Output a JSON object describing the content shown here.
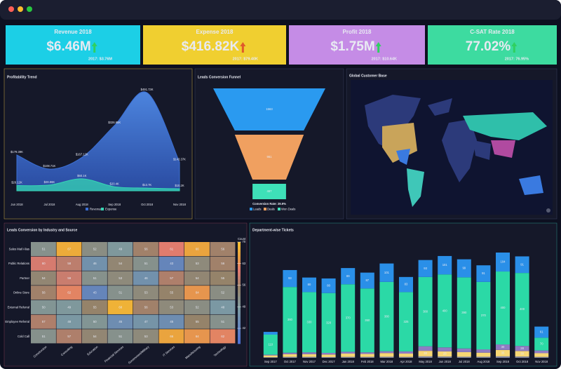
{
  "kpis": [
    {
      "title": "Revenue 2018",
      "value": "$6.46M",
      "previous": "2017: $3.76M",
      "color": "#1ccfe6"
    },
    {
      "title": "Expense 2018",
      "value": "$416.82K",
      "previous": "2017: $79.40K",
      "color": "#f0cf30"
    },
    {
      "title": "Profit 2018",
      "value": "$1.75M",
      "previous": "2017: $10.64K",
      "color": "#c58ce6"
    },
    {
      "title": "C-SAT Rate 2018",
      "value": "77.02%",
      "previous": "2017: 76.95%",
      "color": "#3ddba0"
    }
  ],
  "map": {
    "title": "Global Customer Base"
  },
  "chart_data": [
    {
      "type": "area",
      "title": "Profitability Trend",
      "categories": [
        "Jun 2018",
        "Jul 2018",
        "Aug 2018",
        "Sep 2018",
        "Oct 2018",
        "Nov 2018"
      ],
      "series": [
        {
          "name": "Revenue",
          "color": "#3b6fd4",
          "values": [
            179.39,
            108.71,
            167.12,
            326.95,
            491.73,
            143.37
          ],
          "value_labels": [
            "$179.39K",
            "$108.71K",
            "$167.12K",
            "$326.95K",
            "$491.73K",
            "$143.37K"
          ]
        },
        {
          "name": "Expense",
          "color": "#36d6b4",
          "values": [
            26.12,
            28.86,
            60.1,
            20.4,
            13.7,
            10.2
          ],
          "value_labels": [
            "$26.12K",
            "$28.86K",
            "$60.1K",
            "$20.4K",
            "$13.7K",
            "$10.2K"
          ]
        }
      ]
    },
    {
      "type": "funnel",
      "title": "Leads Conversion Funnel",
      "categories": [
        "Leads",
        "Deals",
        "Won Deals"
      ],
      "values": [
        1563,
        961,
        467
      ],
      "colors": [
        "#2a9af0",
        "#f0a060",
        "#3ee0b8"
      ],
      "annotation": "Conversion Rate: 29.9%"
    },
    {
      "type": "heatmap",
      "title": "Leads Conversion by Industry and Source",
      "rows": [
        "Sales Mail Alias",
        "Public Relations",
        "Partner",
        "Online Store",
        "External Referral",
        "Employee Referral",
        "Cold Call"
      ],
      "columns": [
        "Construction",
        "Consulting",
        "Education",
        "Financial Services",
        "Government/Military",
        "IT Services",
        "Manufacturing",
        "Technology"
      ],
      "values": [
        [
          51,
          67,
          52,
          49,
          56,
          61,
          66,
          56
        ],
        [
          60,
          58,
          46,
          54,
          51,
          43,
          53,
          56
        ],
        [
          54,
          59,
          51,
          53,
          46,
          57,
          54,
          55
        ],
        [
          56,
          62,
          43,
          51,
          53,
          55,
          64,
          52
        ],
        [
          50,
          49,
          55,
          68,
          56,
          53,
          52,
          48
        ],
        [
          57,
          48,
          50,
          45,
          47,
          45,
          55,
          51
        ],
        [
          51,
          57,
          54,
          51,
          53,
          66,
          64,
          62
        ]
      ],
      "legend_title": "Count",
      "clim": [
        37,
        70
      ],
      "cticks": [
        70,
        63,
        56,
        49,
        42
      ]
    },
    {
      "type": "stacked_bar",
      "title": "Department-wise Tickets",
      "categories": [
        "Sep 2017",
        "Oct 2017",
        "Nov 2017",
        "Dec 2017",
        "Jan 2018",
        "Feb 2018",
        "Mar 2018",
        "Apr 2018",
        "May 2018",
        "Jun 2018",
        "Jul 2018",
        "Aug 2018",
        "Sep 2018",
        "Oct 2018",
        "Nov 2018"
      ],
      "series": [
        {
          "color": "#8a8fa8",
          "values": [
            3,
            5,
            5,
            4,
            5,
            5,
            6,
            5,
            8,
            7,
            6,
            6,
            8,
            7,
            5
          ]
        },
        {
          "color": "#f7d774",
          "values": [
            10,
            15,
            15,
            14,
            18,
            16,
            20,
            18,
            30,
            28,
            25,
            22,
            35,
            30,
            20
          ]
        },
        {
          "color": "#8e7cc3",
          "values": [
            4,
            8,
            10,
            9,
            10,
            9,
            10,
            12,
            25,
            22,
            20,
            18,
            30,
            28,
            15
          ]
        },
        {
          "color": "#2bd9a6",
          "values": [
            110,
            360,
            330,
            328,
            370,
            350,
            380,
            325,
            380,
            400,
            390,
            370,
            400,
            400,
            70
          ]
        },
        {
          "color": "#2a8fe8",
          "values": [
            15,
            93,
            80,
            80,
            89,
            87,
            101,
            83,
            93,
            101,
            99,
            91,
            104,
            91,
            61
          ]
        }
      ]
    }
  ]
}
